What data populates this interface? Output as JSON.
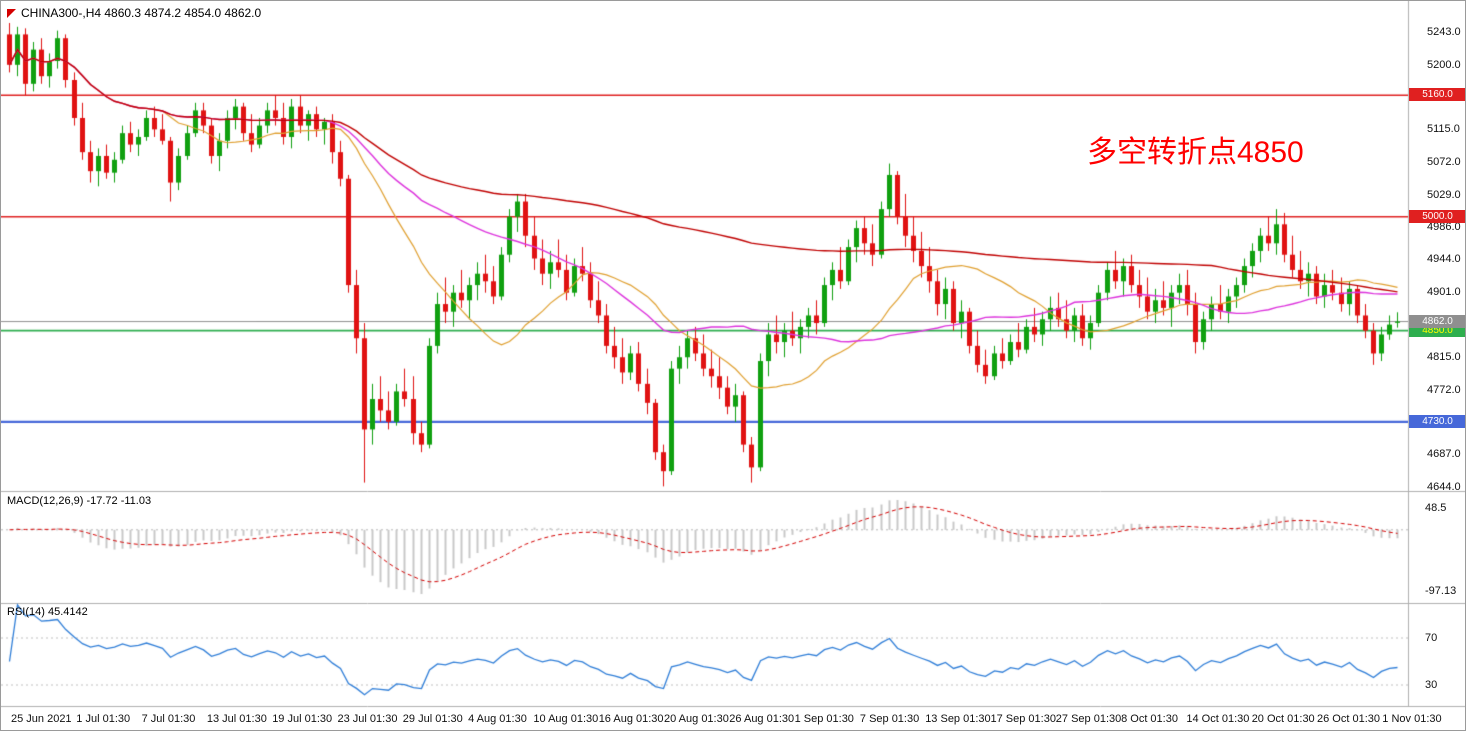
{
  "header": {
    "title": "CHINA300-,H4 4860.3 4874.2 4854.0 4862.0",
    "symbol": "CHINA300-",
    "timeframe": "H4"
  },
  "annotation": {
    "text": "多空转折点4850",
    "color": "#ff0000"
  },
  "colors": {
    "up": "#10a010",
    "down": "#e01212",
    "background": "#ffffff",
    "separator": "#b0b0b0",
    "macd_hist": "#c9c9c9",
    "macd_signal": "#d40000",
    "rsi_line": "#2f7ed8",
    "level_dotted": "#c0c0c0"
  },
  "indicators": {
    "macd": {
      "label": "MACD(12,26,9) -17.72 -11.03",
      "fast": 12,
      "slow": 26,
      "signal": 9,
      "value_main": -17.72,
      "value_signal": -11.03,
      "axis_max": "48.5",
      "axis_min": "-97.13"
    },
    "rsi": {
      "label": "RSI(14) 45.4142",
      "period": 14,
      "value": 45.4142,
      "levels": [
        70,
        30
      ],
      "axis_labels": [
        "70",
        "30"
      ]
    }
  },
  "price_axis": {
    "ticks": [
      {
        "price": 5243.0,
        "text": "5243.0"
      },
      {
        "price": 5200.0,
        "text": "5200.0"
      },
      {
        "price": 5115.0,
        "text": "5115.0"
      },
      {
        "price": 5072.0,
        "text": "5072.0"
      },
      {
        "price": 5029.0,
        "text": "5029.0"
      },
      {
        "price": 4986.0,
        "text": "4986.0"
      },
      {
        "price": 4944.0,
        "text": "4944.0"
      },
      {
        "price": 4901.0,
        "text": "4901.0"
      },
      {
        "price": 4815.0,
        "text": "4815.0"
      },
      {
        "price": 4772.0,
        "text": "4772.0"
      },
      {
        "price": 4687.0,
        "text": "4687.0"
      },
      {
        "price": 4644.0,
        "text": "4644.0"
      }
    ],
    "line_labels": [
      {
        "price": 5160.0,
        "text": "5160.0",
        "bg": "#e02020",
        "fg": "#ffffff"
      },
      {
        "price": 5000.0,
        "text": "5000.0",
        "bg": "#e02020",
        "fg": "#ffffff"
      },
      {
        "price": 4730.0,
        "text": "4730.0",
        "bg": "#4668d9",
        "fg": "#ffffff"
      },
      {
        "price": 4850.0,
        "text": "4850.0",
        "bg": "#2eae4e",
        "fg": "#ffff00"
      },
      {
        "price": 4862.0,
        "text": "4862.0",
        "bg": "#8f8f8f",
        "fg": "#ffffff"
      }
    ]
  },
  "time_axis": {
    "labels": [
      "25 Jun 2021",
      "1 Jul 01:30",
      "7 Jul 01:30",
      "13 Jul 01:30",
      "19 Jul 01:30",
      "23 Jul 01:30",
      "29 Jul 01:30",
      "4 Aug 01:30",
      "10 Aug 01:30",
      "16 Aug 01:30",
      "20 Aug 01:30",
      "26 Aug 01:30",
      "1 Sep 01:30",
      "7 Sep 01:30",
      "13 Sep 01:30",
      "17 Sep 01:30",
      "27 Sep 01:30",
      "8 Oct 01:30",
      "14 Oct 01:30",
      "20 Oct 01:30",
      "26 Oct 01:30",
      "1 Nov 01:30"
    ]
  },
  "chart_data": {
    "type": "candlestick",
    "title": "CHINA300-,H4",
    "last_bar": {
      "open": 4860.3,
      "high": 4874.2,
      "low": 4854.0,
      "close": 4862.0
    },
    "ylim": [
      4644.0,
      5243.0
    ],
    "hlines": [
      {
        "price": 5160.0,
        "color": "#e02020",
        "width": 1.4
      },
      {
        "price": 5000.0,
        "color": "#e02020",
        "width": 1.4
      },
      {
        "price": 4850.0,
        "color": "#2eae4e",
        "width": 1.8
      },
      {
        "price": 4730.0,
        "color": "#4668d9",
        "width": 2.2
      }
    ],
    "current_price": {
      "value": 4862.0,
      "color": "#8f8f8f"
    },
    "moving_averages": [
      {
        "period": 20,
        "color": "#e0a030",
        "width": 1.2
      },
      {
        "period": 40,
        "color": "#dd33dd",
        "width": 1.4
      },
      {
        "period": 150,
        "color": "#c00000",
        "width": 1.4
      }
    ],
    "candles": [
      [
        5240,
        5255,
        5190,
        5200
      ],
      [
        5200,
        5250,
        5185,
        5240
      ],
      [
        5240,
        5248,
        5160,
        5175
      ],
      [
        5175,
        5230,
        5165,
        5220
      ],
      [
        5220,
        5235,
        5175,
        5185
      ],
      [
        5185,
        5215,
        5170,
        5205
      ],
      [
        5205,
        5245,
        5195,
        5235
      ],
      [
        5235,
        5240,
        5170,
        5180
      ],
      [
        5180,
        5190,
        5120,
        5130
      ],
      [
        5130,
        5150,
        5075,
        5085
      ],
      [
        5085,
        5100,
        5045,
        5060
      ],
      [
        5060,
        5090,
        5040,
        5080
      ],
      [
        5080,
        5095,
        5050,
        5058
      ],
      [
        5058,
        5085,
        5045,
        5075
      ],
      [
        5075,
        5120,
        5070,
        5110
      ],
      [
        5110,
        5125,
        5085,
        5095
      ],
      [
        5095,
        5115,
        5080,
        5105
      ],
      [
        5105,
        5140,
        5100,
        5130
      ],
      [
        5130,
        5145,
        5105,
        5115
      ],
      [
        5115,
        5135,
        5095,
        5100
      ],
      [
        5100,
        5105,
        5020,
        5045
      ],
      [
        5045,
        5090,
        5035,
        5080
      ],
      [
        5080,
        5120,
        5075,
        5110
      ],
      [
        5110,
        5150,
        5105,
        5140
      ],
      [
        5140,
        5150,
        5110,
        5120
      ],
      [
        5120,
        5130,
        5070,
        5080
      ],
      [
        5080,
        5110,
        5060,
        5100
      ],
      [
        5100,
        5140,
        5090,
        5130
      ],
      [
        5130,
        5155,
        5115,
        5145
      ],
      [
        5145,
        5150,
        5100,
        5110
      ],
      [
        5110,
        5135,
        5085,
        5095
      ],
      [
        5095,
        5130,
        5090,
        5120
      ],
      [
        5120,
        5150,
        5110,
        5140
      ],
      [
        5140,
        5160,
        5120,
        5130
      ],
      [
        5130,
        5150,
        5095,
        5105
      ],
      [
        5105,
        5155,
        5090,
        5145
      ],
      [
        5145,
        5160,
        5110,
        5120
      ],
      [
        5120,
        5140,
        5100,
        5135
      ],
      [
        5135,
        5145,
        5105,
        5115
      ],
      [
        5115,
        5130,
        5095,
        5125
      ],
      [
        5125,
        5135,
        5070,
        5085
      ],
      [
        5085,
        5100,
        5040,
        5050
      ],
      [
        5050,
        5055,
        4900,
        4910
      ],
      [
        4910,
        4930,
        4820,
        4840
      ],
      [
        4840,
        4860,
        4650,
        4720
      ],
      [
        4720,
        4780,
        4700,
        4760
      ],
      [
        4760,
        4790,
        4730,
        4745
      ],
      [
        4745,
        4770,
        4720,
        4730
      ],
      [
        4730,
        4780,
        4725,
        4770
      ],
      [
        4770,
        4800,
        4750,
        4760
      ],
      [
        4760,
        4790,
        4700,
        4715
      ],
      [
        4715,
        4730,
        4690,
        4700
      ],
      [
        4700,
        4840,
        4695,
        4830
      ],
      [
        4830,
        4900,
        4820,
        4885
      ],
      [
        4885,
        4920,
        4860,
        4875
      ],
      [
        4875,
        4910,
        4855,
        4900
      ],
      [
        4900,
        4930,
        4880,
        4890
      ],
      [
        4890,
        4920,
        4865,
        4910
      ],
      [
        4910,
        4940,
        4890,
        4925
      ],
      [
        4925,
        4950,
        4900,
        4915
      ],
      [
        4915,
        4935,
        4885,
        4895
      ],
      [
        4895,
        4960,
        4890,
        4950
      ],
      [
        4950,
        5010,
        4940,
        5000
      ],
      [
        5000,
        5030,
        4980,
        5020
      ],
      [
        5020,
        5030,
        4960,
        4975
      ],
      [
        4975,
        5000,
        4930,
        4945
      ],
      [
        4945,
        4970,
        4910,
        4925
      ],
      [
        4925,
        4955,
        4905,
        4940
      ],
      [
        4940,
        4970,
        4920,
        4930
      ],
      [
        4930,
        4950,
        4890,
        4900
      ],
      [
        4900,
        4945,
        4895,
        4935
      ],
      [
        4935,
        4960,
        4915,
        4925
      ],
      [
        4925,
        4940,
        4880,
        4890
      ],
      [
        4890,
        4915,
        4860,
        4870
      ],
      [
        4870,
        4885,
        4820,
        4830
      ],
      [
        4830,
        4855,
        4800,
        4815
      ],
      [
        4815,
        4840,
        4780,
        4795
      ],
      [
        4795,
        4830,
        4785,
        4820
      ],
      [
        4820,
        4835,
        4770,
        4780
      ],
      [
        4780,
        4800,
        4740,
        4755
      ],
      [
        4755,
        4760,
        4680,
        4690
      ],
      [
        4690,
        4700,
        4645,
        4665
      ],
      [
        4665,
        4810,
        4660,
        4800
      ],
      [
        4800,
        4830,
        4780,
        4815
      ],
      [
        4815,
        4850,
        4800,
        4840
      ],
      [
        4840,
        4855,
        4810,
        4820
      ],
      [
        4820,
        4845,
        4790,
        4800
      ],
      [
        4800,
        4825,
        4775,
        4790
      ],
      [
        4790,
        4815,
        4760,
        4775
      ],
      [
        4775,
        4790,
        4740,
        4750
      ],
      [
        4750,
        4780,
        4730,
        4765
      ],
      [
        4765,
        4770,
        4690,
        4700
      ],
      [
        4700,
        4710,
        4650,
        4670
      ],
      [
        4670,
        4820,
        4665,
        4810
      ],
      [
        4810,
        4860,
        4790,
        4845
      ],
      [
        4845,
        4870,
        4820,
        4835
      ],
      [
        4835,
        4860,
        4815,
        4850
      ],
      [
        4850,
        4875,
        4830,
        4840
      ],
      [
        4840,
        4865,
        4820,
        4855
      ],
      [
        4855,
        4880,
        4840,
        4870
      ],
      [
        4870,
        4890,
        4845,
        4860
      ],
      [
        4860,
        4920,
        4855,
        4910
      ],
      [
        4910,
        4940,
        4890,
        4930
      ],
      [
        4930,
        4960,
        4905,
        4915
      ],
      [
        4915,
        4970,
        4910,
        4960
      ],
      [
        4960,
        4995,
        4940,
        4985
      ],
      [
        4985,
        5000,
        4950,
        4965
      ],
      [
        4965,
        4990,
        4935,
        4950
      ],
      [
        4950,
        5020,
        4945,
        5010
      ],
      [
        5010,
        5070,
        5000,
        5055
      ],
      [
        5055,
        5060,
        4990,
        5000
      ],
      [
        5000,
        5030,
        4960,
        4975
      ],
      [
        4975,
        5000,
        4940,
        4955
      ],
      [
        4955,
        4980,
        4920,
        4935
      ],
      [
        4935,
        4960,
        4900,
        4915
      ],
      [
        4915,
        4930,
        4870,
        4885
      ],
      [
        4885,
        4920,
        4865,
        4905
      ],
      [
        4905,
        4915,
        4850,
        4860
      ],
      [
        4860,
        4890,
        4840,
        4875
      ],
      [
        4875,
        4880,
        4820,
        4830
      ],
      [
        4830,
        4850,
        4795,
        4805
      ],
      [
        4805,
        4825,
        4780,
        4790
      ],
      [
        4790,
        4830,
        4785,
        4820
      ],
      [
        4820,
        4840,
        4800,
        4810
      ],
      [
        4810,
        4845,
        4805,
        4835
      ],
      [
        4835,
        4860,
        4815,
        4825
      ],
      [
        4825,
        4865,
        4820,
        4855
      ],
      [
        4855,
        4880,
        4835,
        4845
      ],
      [
        4845,
        4875,
        4830,
        4865
      ],
      [
        4865,
        4895,
        4850,
        4880
      ],
      [
        4880,
        4900,
        4855,
        4865
      ],
      [
        4865,
        4890,
        4840,
        4850
      ],
      [
        4850,
        4880,
        4835,
        4870
      ],
      [
        4870,
        4885,
        4830,
        4840
      ],
      [
        4840,
        4870,
        4825,
        4860
      ],
      [
        4860,
        4910,
        4855,
        4900
      ],
      [
        4900,
        4940,
        4890,
        4930
      ],
      [
        4930,
        4955,
        4905,
        4915
      ],
      [
        4915,
        4945,
        4895,
        4935
      ],
      [
        4935,
        4950,
        4900,
        4910
      ],
      [
        4910,
        4930,
        4880,
        4895
      ],
      [
        4895,
        4920,
        4865,
        4875
      ],
      [
        4875,
        4905,
        4860,
        4890
      ],
      [
        4890,
        4915,
        4870,
        4880
      ],
      [
        4880,
        4910,
        4855,
        4900
      ],
      [
        4900,
        4925,
        4885,
        4910
      ],
      [
        4910,
        4930,
        4870,
        4885
      ],
      [
        4885,
        4900,
        4820,
        4835
      ],
      [
        4835,
        4875,
        4825,
        4865
      ],
      [
        4865,
        4895,
        4850,
        4885
      ],
      [
        4885,
        4910,
        4865,
        4875
      ],
      [
        4875,
        4905,
        4860,
        4895
      ],
      [
        4895,
        4920,
        4880,
        4910
      ],
      [
        4910,
        4945,
        4900,
        4935
      ],
      [
        4935,
        4965,
        4920,
        4955
      ],
      [
        4955,
        4985,
        4940,
        4975
      ],
      [
        4975,
        5000,
        4955,
        4965
      ],
      [
        4965,
        5010,
        4950,
        4990
      ],
      [
        4990,
        5005,
        4940,
        4950
      ],
      [
        4950,
        4975,
        4920,
        4930
      ],
      [
        4930,
        4955,
        4905,
        4915
      ],
      [
        4915,
        4940,
        4895,
        4925
      ],
      [
        4925,
        4935,
        4885,
        4895
      ],
      [
        4895,
        4925,
        4880,
        4910
      ],
      [
        4910,
        4930,
        4890,
        4900
      ],
      [
        4900,
        4920,
        4875,
        4885
      ],
      [
        4885,
        4915,
        4870,
        4905
      ],
      [
        4905,
        4910,
        4860,
        4870
      ],
      [
        4870,
        4885,
        4840,
        4850
      ],
      [
        4850,
        4860,
        4805,
        4820
      ],
      [
        4820,
        4855,
        4810,
        4845
      ],
      [
        4845,
        4870,
        4838,
        4858
      ],
      [
        4860.3,
        4874.2,
        4854,
        4862
      ]
    ]
  }
}
